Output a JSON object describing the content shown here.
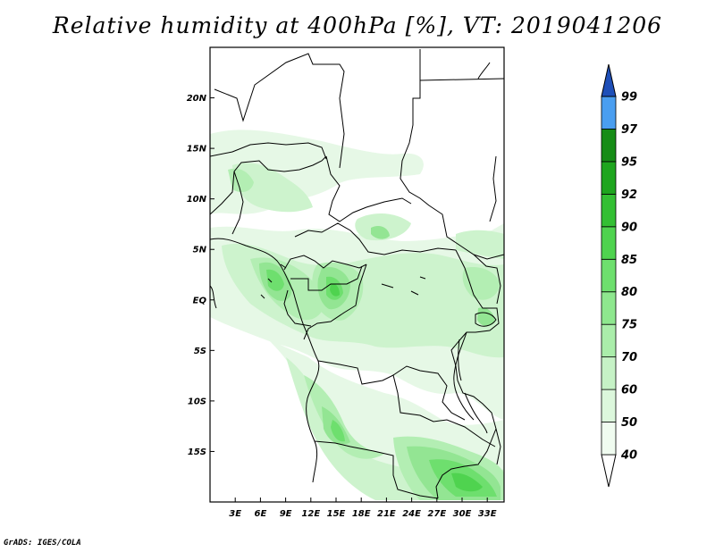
{
  "title": "Relative humidity at 400hPa [%], VT: 2019041206",
  "credit": "GrADS: IGES/COLA",
  "map": {
    "lon_range": [
      0,
      35
    ],
    "lat_range": [
      -20,
      25
    ],
    "lat_ticks": [
      {
        "value": 20,
        "label": "20N"
      },
      {
        "value": 15,
        "label": "15N"
      },
      {
        "value": 10,
        "label": "10N"
      },
      {
        "value": 5,
        "label": "5N"
      },
      {
        "value": 0,
        "label": "EQ"
      },
      {
        "value": -5,
        "label": "5S"
      },
      {
        "value": -10,
        "label": "10S"
      },
      {
        "value": -15,
        "label": "15S"
      }
    ],
    "lon_ticks": [
      {
        "value": 3,
        "label": "3E"
      },
      {
        "value": 6,
        "label": "6E"
      },
      {
        "value": 9,
        "label": "9E"
      },
      {
        "value": 12,
        "label": "12E"
      },
      {
        "value": 15,
        "label": "15E"
      },
      {
        "value": 18,
        "label": "18E"
      },
      {
        "value": 21,
        "label": "21E"
      },
      {
        "value": 24,
        "label": "24E"
      },
      {
        "value": 27,
        "label": "27E"
      },
      {
        "value": 30,
        "label": "30E"
      },
      {
        "value": 33,
        "label": "33E"
      }
    ]
  },
  "legend": {
    "levels": [
      {
        "label": "40",
        "color": "#f0fcf0"
      },
      {
        "label": "50",
        "color": "#dcf7dc"
      },
      {
        "label": "60",
        "color": "#c6f2c6"
      },
      {
        "label": "70",
        "color": "#aaedaa"
      },
      {
        "label": "75",
        "color": "#8ee78e"
      },
      {
        "label": "80",
        "color": "#6edf6e"
      },
      {
        "label": "85",
        "color": "#4fd34f"
      },
      {
        "label": "90",
        "color": "#33bf33"
      },
      {
        "label": "92",
        "color": "#1ea51e"
      },
      {
        "label": "95",
        "color": "#168c16"
      },
      {
        "label": "97",
        "color": "#4a9ef0"
      },
      {
        "label": "99",
        "color": "#2a70d8"
      }
    ],
    "top_color": "#1e4fb8",
    "bottom_color": "#ffffff"
  }
}
